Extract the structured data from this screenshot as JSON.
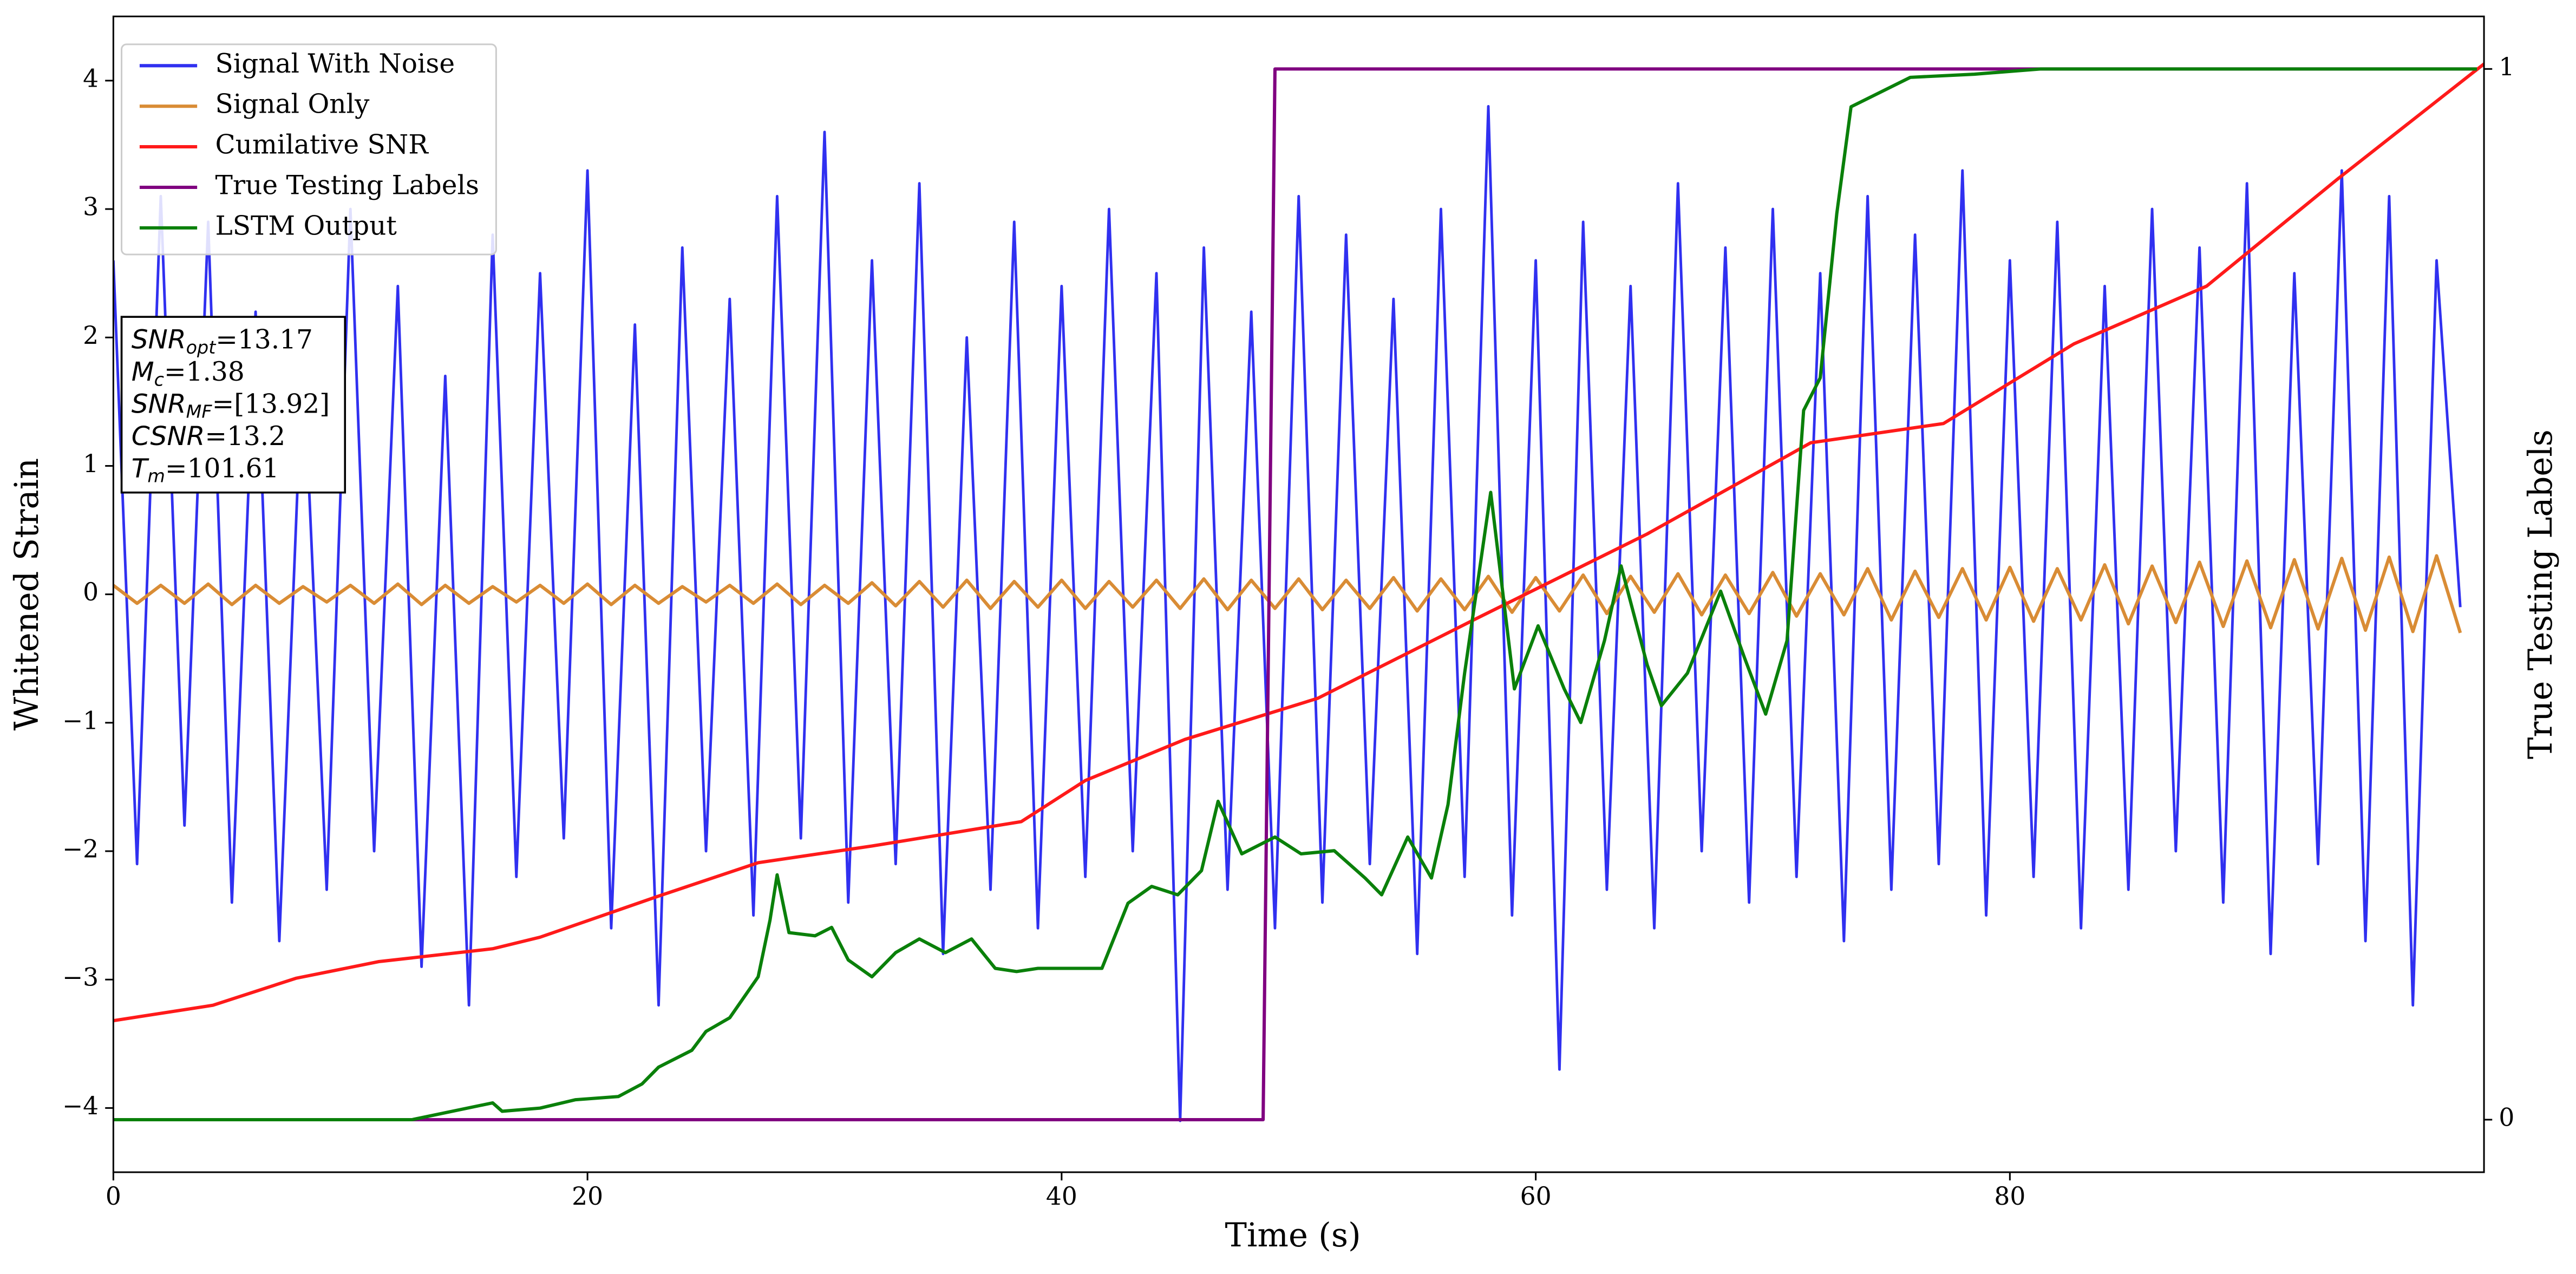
{
  "chart_data": {
    "type": "line",
    "xlabel": "Time (s)",
    "ylabel": "Whitened Strain",
    "y2label": "True Testing Labels",
    "xlim": [
      0,
      100
    ],
    "ylim": [
      -4.5,
      4.5
    ],
    "y2lim": [
      -0.05,
      1.05
    ],
    "xticks": [
      0,
      20,
      40,
      60,
      80
    ],
    "yticks": [
      {
        "value": -4,
        "label": "−4"
      },
      {
        "value": -3,
        "label": "−3"
      },
      {
        "value": -2,
        "label": "−2"
      },
      {
        "value": -1,
        "label": "−1"
      },
      0,
      1,
      2,
      3,
      4
    ],
    "y2ticks": [
      0,
      1
    ],
    "grid": false,
    "legend": "upper left",
    "annotations": [
      {
        "base": "SNR",
        "sub": "opt",
        "rest": "=13.17"
      },
      {
        "base": "M",
        "sub": "c",
        "rest": "=1.38"
      },
      {
        "base": "SNR",
        "sub": "MF",
        "rest": "=[13.92]"
      },
      {
        "base": "CSNR",
        "rest": "=13.2"
      },
      {
        "base": "T",
        "sub": "m",
        "rest": "=101.61"
      }
    ],
    "series": [
      {
        "name": "Signal With Noise",
        "color": "#3030f0",
        "x": [
          0,
          1,
          2,
          3,
          4,
          5,
          6,
          7,
          8,
          9,
          10,
          11,
          12,
          13,
          14,
          15,
          16,
          17,
          18,
          19,
          20,
          21,
          22,
          23,
          24,
          25,
          26,
          27,
          28,
          29,
          30,
          31,
          32,
          33,
          34,
          35,
          36,
          37,
          38,
          39,
          40,
          41,
          42,
          43,
          44,
          45,
          46,
          47,
          48,
          49,
          50,
          51,
          52,
          53,
          54,
          55,
          56,
          57,
          58,
          59,
          60,
          61,
          62,
          63,
          64,
          65,
          66,
          67,
          68,
          69,
          70,
          71,
          72,
          73,
          74,
          75,
          76,
          77,
          78,
          79,
          80,
          81,
          82,
          83,
          84,
          85,
          86,
          87,
          88,
          89,
          90,
          91,
          92,
          93,
          94,
          95,
          96,
          97,
          98,
          99
        ],
        "values": [
          2.6,
          -2.1,
          3.1,
          -1.8,
          2.9,
          -2.4,
          2.2,
          -2.7,
          1.9,
          -2.3,
          3.0,
          -2.0,
          2.4,
          -2.9,
          1.7,
          -3.2,
          2.8,
          -2.2,
          2.5,
          -1.9,
          3.3,
          -2.6,
          2.1,
          -3.2,
          2.7,
          -2.0,
          2.3,
          -2.5,
          3.1,
          -1.9,
          3.6,
          -2.4,
          2.6,
          -2.1,
          3.2,
          -2.8,
          2.0,
          -2.3,
          2.9,
          -2.6,
          2.4,
          -2.2,
          3.0,
          -2.0,
          2.5,
          -4.1,
          2.7,
          -2.3,
          2.2,
          -2.6,
          3.1,
          -2.4,
          2.8,
          -2.1,
          2.3,
          -2.8,
          3.0,
          -2.2,
          3.8,
          -2.5,
          2.6,
          -3.7,
          2.9,
          -2.3,
          2.4,
          -2.6,
          3.2,
          -2.0,
          2.7,
          -2.4,
          3.0,
          -2.2,
          2.5,
          -2.7,
          3.1,
          -2.3,
          2.8,
          -2.1,
          3.3,
          -2.5,
          2.6,
          -2.2,
          2.9,
          -2.6,
          2.4,
          -2.3,
          3.0,
          -2.0,
          2.7,
          -2.4,
          3.2,
          -2.8,
          2.5,
          -2.1,
          3.3,
          -2.7,
          3.1,
          -3.2,
          2.6,
          -0.1
        ]
      },
      {
        "name": "Signal Only",
        "color": "#d98c35",
        "x": [
          0,
          1,
          2,
          3,
          4,
          5,
          6,
          7,
          8,
          9,
          10,
          11,
          12,
          13,
          14,
          15,
          16,
          17,
          18,
          19,
          20,
          21,
          22,
          23,
          24,
          25,
          26,
          27,
          28,
          29,
          30,
          31,
          32,
          33,
          34,
          35,
          36,
          37,
          38,
          39,
          40,
          41,
          42,
          43,
          44,
          45,
          46,
          47,
          48,
          49,
          50,
          51,
          52,
          53,
          54,
          55,
          56,
          57,
          58,
          59,
          60,
          61,
          62,
          63,
          64,
          65,
          66,
          67,
          68,
          69,
          70,
          71,
          72,
          73,
          74,
          75,
          76,
          77,
          78,
          79,
          80,
          81,
          82,
          83,
          84,
          85,
          86,
          87,
          88,
          89,
          90,
          91,
          92,
          93,
          94,
          95,
          96,
          97,
          98,
          99
        ],
        "values": [
          0.07,
          -0.07,
          0.07,
          -0.07,
          0.08,
          -0.08,
          0.07,
          -0.07,
          0.06,
          -0.06,
          0.07,
          -0.07,
          0.08,
          -0.08,
          0.07,
          -0.07,
          0.06,
          -0.06,
          0.07,
          -0.07,
          0.08,
          -0.08,
          0.07,
          -0.07,
          0.06,
          -0.06,
          0.07,
          -0.07,
          0.08,
          -0.08,
          0.07,
          -0.07,
          0.09,
          -0.09,
          0.1,
          -0.1,
          0.11,
          -0.11,
          0.1,
          -0.1,
          0.11,
          -0.11,
          0.1,
          -0.1,
          0.11,
          -0.11,
          0.12,
          -0.12,
          0.11,
          -0.11,
          0.12,
          -0.12,
          0.11,
          -0.11,
          0.13,
          -0.13,
          0.12,
          -0.12,
          0.14,
          -0.14,
          0.13,
          -0.13,
          0.15,
          -0.15,
          0.14,
          -0.14,
          0.16,
          -0.16,
          0.15,
          -0.15,
          0.17,
          -0.17,
          0.16,
          -0.16,
          0.2,
          -0.2,
          0.18,
          -0.18,
          0.2,
          -0.2,
          0.21,
          -0.21,
          0.2,
          -0.2,
          0.23,
          -0.23,
          0.22,
          -0.22,
          0.25,
          -0.25,
          0.26,
          -0.26,
          0.27,
          -0.27,
          0.28,
          -0.28,
          0.29,
          -0.29,
          0.3,
          -0.3
        ]
      },
      {
        "name": "Cumilative SNR",
        "color": "#ff1a1a",
        "x": [
          0,
          4.2,
          7.7,
          11.2,
          16,
          18,
          23,
          27.2,
          32,
          38.3,
          41,
          45.2,
          50.8,
          57.7,
          64.7,
          71.6,
          77.2,
          82.7,
          88.3,
          93.8,
          100
        ],
        "values": [
          -3.32,
          -3.2,
          -2.99,
          -2.86,
          -2.76,
          -2.67,
          -2.35,
          -2.09,
          -1.96,
          -1.77,
          -1.45,
          -1.13,
          -0.81,
          -0.17,
          0.47,
          1.18,
          1.33,
          1.95,
          2.4,
          3.23,
          4.13
        ]
      },
      {
        "name": "True Testing Labels",
        "color": "#800080",
        "axis": "y2",
        "x": [
          0,
          48.5,
          49,
          99.7
        ],
        "values": [
          0,
          0,
          1,
          1
        ]
      },
      {
        "name": "LSTM Output",
        "color": "#0a800a",
        "axis": "y2",
        "x": [
          0,
          12.6,
          16,
          16.4,
          18,
          19.5,
          21.3,
          22.3,
          23,
          24.4,
          25,
          26,
          27.2,
          27.7,
          28,
          28.5,
          29.6,
          30.3,
          31,
          32,
          33,
          34,
          35.1,
          36.2,
          37.2,
          38.1,
          39,
          40.3,
          41.7,
          42.8,
          43.8,
          44.9,
          45.9,
          46.6,
          47.6,
          49,
          50.1,
          51.5,
          52.8,
          53.5,
          54.6,
          55.6,
          56.3,
          57,
          58.1,
          59.1,
          60.1,
          61.2,
          61.9,
          62.9,
          63.6,
          64.7,
          65.3,
          66.4,
          67.8,
          68.8,
          69.7,
          70.6,
          71.3,
          72,
          72.7,
          73.3,
          75.8,
          78.5,
          81.3,
          99.7
        ],
        "values": [
          0,
          0,
          0.016,
          0.008,
          0.011,
          0.019,
          0.022,
          0.034,
          0.05,
          0.066,
          0.084,
          0.097,
          0.136,
          0.19,
          0.233,
          0.178,
          0.175,
          0.183,
          0.152,
          0.136,
          0.159,
          0.172,
          0.159,
          0.172,
          0.144,
          0.141,
          0.144,
          0.144,
          0.144,
          0.206,
          0.222,
          0.214,
          0.237,
          0.303,
          0.253,
          0.269,
          0.253,
          0.256,
          0.23,
          0.214,
          0.269,
          0.23,
          0.3,
          0.425,
          0.597,
          0.41,
          0.47,
          0.41,
          0.378,
          0.456,
          0.527,
          0.433,
          0.394,
          0.425,
          0.503,
          0.44,
          0.386,
          0.456,
          0.675,
          0.706,
          0.8625,
          0.964,
          0.992,
          0.995,
          1,
          1
        ]
      }
    ]
  }
}
